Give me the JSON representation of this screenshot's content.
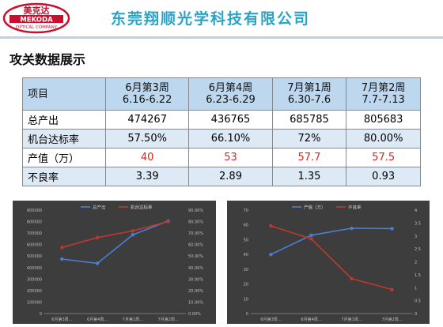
{
  "header": {
    "logo_text_top": "美克达",
    "logo_text_mid": "MEKODA",
    "logo_text_bottom": "OPTICAL COMPANY",
    "company_name": "东莞翔顺光学科技有限公司"
  },
  "section_title": "攻关数据展示",
  "table": {
    "corner": "项目",
    "columns": [
      {
        "week": "6月第3周",
        "range": "6.16-6.22"
      },
      {
        "week": "6月第4周",
        "range": "6.23-6.29"
      },
      {
        "week": "7月第1周",
        "range": "6.30-7.6"
      },
      {
        "week": "7月第2周",
        "range": "7.7-7.13"
      }
    ],
    "rows": [
      {
        "label": "总产出",
        "values": [
          "474267",
          "436765",
          "685785",
          "805683"
        ]
      },
      {
        "label": "机台达标率",
        "values": [
          "57.50%",
          "66.10%",
          "72%",
          "80.00%"
        ]
      },
      {
        "label": "产值（万）",
        "values": [
          "40",
          "53",
          "57.7",
          "57.5"
        ]
      },
      {
        "label": "不良率",
        "values": [
          "3.39",
          "2.89",
          "1.35",
          "0.93"
        ]
      }
    ]
  },
  "chart_data": [
    {
      "type": "line",
      "categories": [
        "6月第3周...",
        "6月第4周...",
        "7月第1周...",
        "7月第2周..."
      ],
      "series": [
        {
          "name": "总产出",
          "axis": "left",
          "color": "#4a7fd4",
          "values": [
            474267,
            436765,
            685785,
            805683
          ]
        },
        {
          "name": "机台达标率",
          "axis": "right",
          "color": "#c0392b",
          "values": [
            57.5,
            66.1,
            72,
            80
          ]
        }
      ],
      "y_left": {
        "min": 0,
        "max": 900000,
        "step": 100000,
        "ticks": [
          "0",
          "100000",
          "200000",
          "300000",
          "400000",
          "500000",
          "600000",
          "700000",
          "800000",
          "900000"
        ]
      },
      "y_right": {
        "min": 0,
        "max": 90,
        "step": 10,
        "ticks": [
          "0.00%",
          "10.00%",
          "20.00%",
          "30.00%",
          "40.00%",
          "50.00%",
          "60.00%",
          "70.00%",
          "80.00%",
          "90.00%"
        ]
      },
      "legend": "top-center",
      "grid": false
    },
    {
      "type": "line",
      "categories": [
        "6月第3周...",
        "6月第4周...",
        "7月第1周...",
        "7月第2周..."
      ],
      "series": [
        {
          "name": "产值（万）",
          "axis": "left",
          "color": "#4a7fd4",
          "values": [
            40,
            53,
            57.7,
            57.5
          ]
        },
        {
          "name": "不良率",
          "axis": "right",
          "color": "#c0392b",
          "values": [
            3.39,
            2.89,
            1.35,
            0.93
          ]
        }
      ],
      "y_left": {
        "min": 0,
        "max": 70,
        "step": 10,
        "ticks": [
          "0",
          "10",
          "20",
          "30",
          "40",
          "50",
          "60",
          "70"
        ]
      },
      "y_right": {
        "min": 0,
        "max": 4,
        "step": 0.5,
        "ticks": [
          "0",
          "0.5",
          "1",
          "1.5",
          "2",
          "2.5",
          "3",
          "3.5",
          "4"
        ]
      },
      "legend": "top-center",
      "grid": false
    }
  ]
}
